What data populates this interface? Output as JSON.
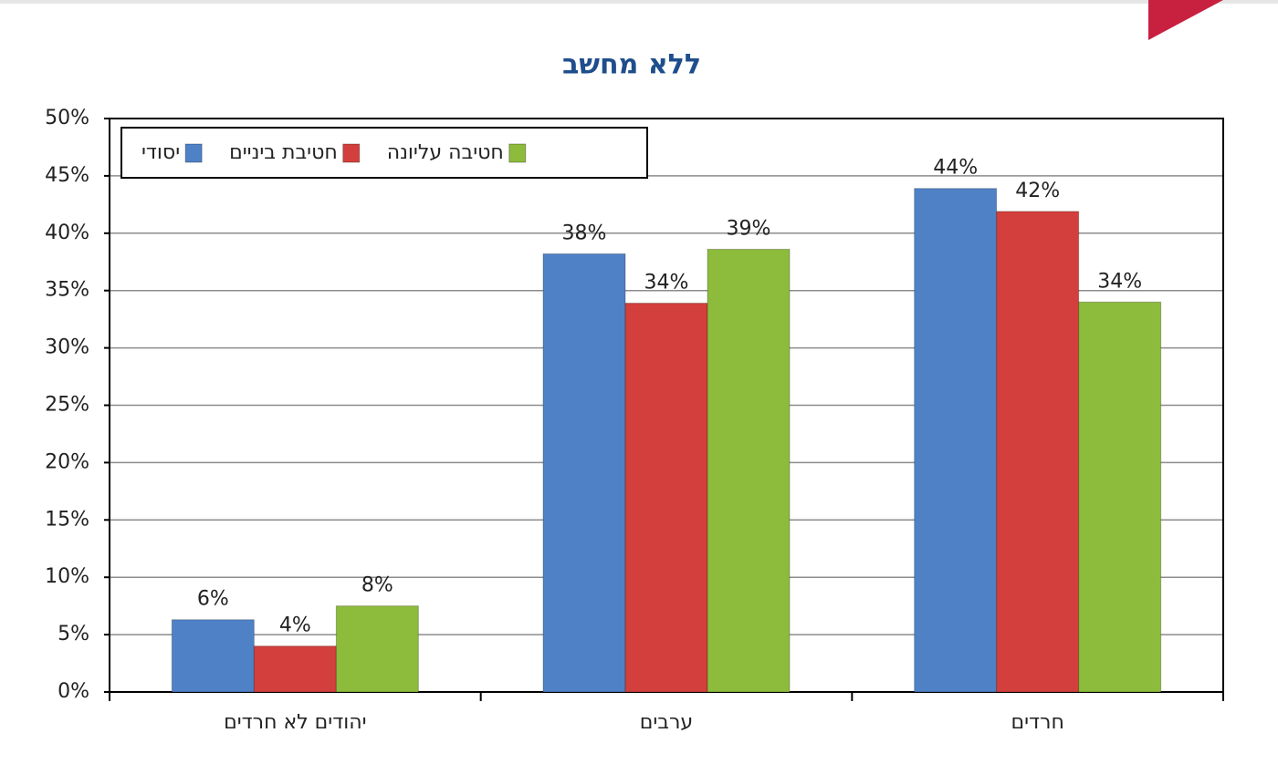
{
  "chart_data": {
    "type": "bar",
    "title": "ללא מחשב",
    "categories": [
      "יהודים לא חרדים",
      "ערבים",
      "חרדים"
    ],
    "series": [
      {
        "name": "יסודי",
        "color": "#4f81c7",
        "values": [
          6.3,
          38.2,
          43.9
        ],
        "value_labels": [
          "6%",
          "38%",
          "44%"
        ]
      },
      {
        "name": "חטיבת ביניים",
        "color": "#d33f3c",
        "values": [
          4,
          33.9,
          41.9
        ],
        "value_labels": [
          "4%",
          "34%",
          "42%"
        ]
      },
      {
        "name": "חטיבה עליונה",
        "color": "#8dbb3c",
        "values": [
          7.5,
          38.6,
          34
        ],
        "value_labels": [
          "8%",
          "39%",
          "34%"
        ]
      }
    ],
    "ylim": [
      0,
      50
    ],
    "yticks": [
      {
        "value": 0,
        "label": "0%"
      },
      {
        "value": 5,
        "label": "5%"
      },
      {
        "value": 10,
        "label": "10%"
      },
      {
        "value": 15,
        "label": "15%"
      },
      {
        "value": 20,
        "label": "20%"
      },
      {
        "value": 25,
        "label": "25%"
      },
      {
        "value": 30,
        "label": "30%"
      },
      {
        "value": 35,
        "label": "35%"
      },
      {
        "value": 40,
        "label": "40%"
      },
      {
        "value": 45,
        "label": "45%"
      },
      {
        "value": 50,
        "label": "50%"
      }
    ],
    "grid": true,
    "legend": "top-left"
  }
}
